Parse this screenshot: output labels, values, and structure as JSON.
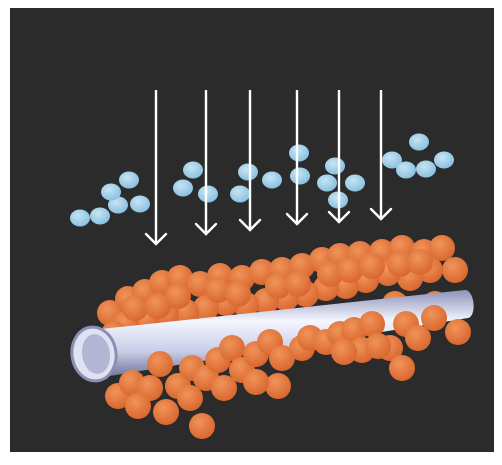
{
  "diagram": {
    "background_color": "#2b2b2b",
    "arrow_color": "#ffffff",
    "droplet_color": "#9ccbe6",
    "particle_color": "#e2773a",
    "tube_color": "#c9cde6",
    "arrow_count": 6,
    "icons": [
      "down-arrow-icon",
      "blue-droplet-icon",
      "orange-particle-icon",
      "metal-tube-icon"
    ]
  }
}
